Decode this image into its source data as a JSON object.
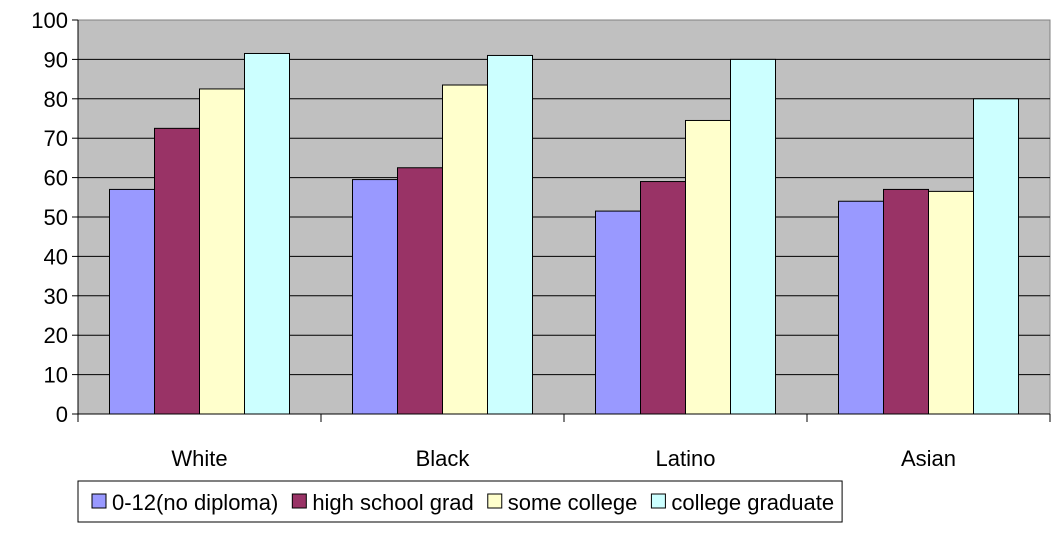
{
  "chart_data": {
    "type": "bar",
    "categories": [
      "White",
      "Black",
      "Latino",
      "Asian"
    ],
    "series": [
      {
        "name": "0-12(no diploma)",
        "color": "#9999ff",
        "values": [
          57,
          59.5,
          51.5,
          54
        ]
      },
      {
        "name": "high school grad",
        "color": "#993366",
        "values": [
          72.5,
          62.5,
          59,
          57
        ]
      },
      {
        "name": "some college",
        "color": "#ffffcc",
        "values": [
          82.5,
          83.5,
          74.5,
          56.5
        ]
      },
      {
        "name": "college graduate",
        "color": "#ccffff",
        "values": [
          91.5,
          91,
          90,
          80
        ]
      }
    ],
    "ylim": [
      0,
      100
    ],
    "yticks": [
      "0",
      "10",
      "20",
      "30",
      "40",
      "50",
      "60",
      "70",
      "80",
      "90",
      "100"
    ],
    "grid": true,
    "plot_background": "#c0c0c0",
    "legend_position": "bottom",
    "title": "",
    "xlabel": "",
    "ylabel": ""
  }
}
